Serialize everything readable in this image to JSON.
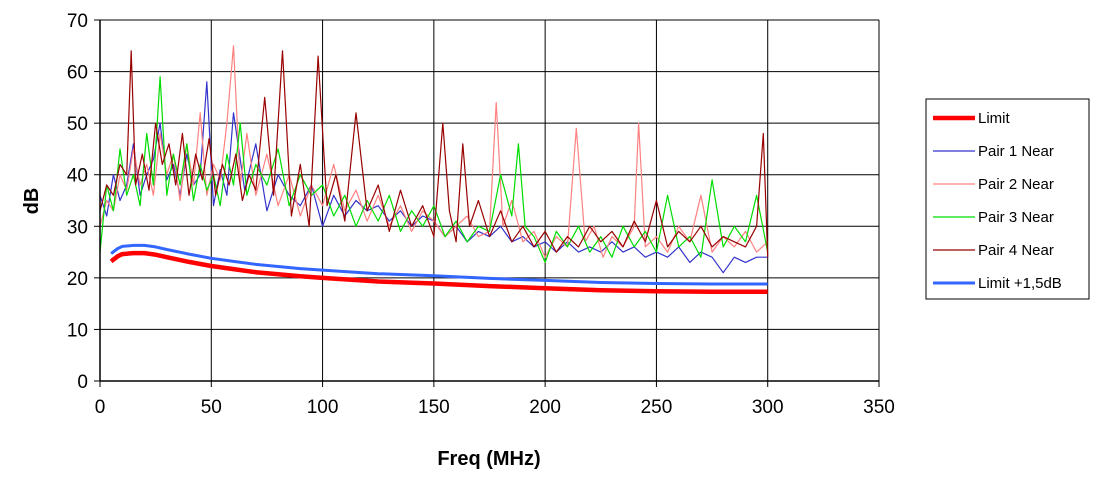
{
  "chart_data": {
    "type": "line",
    "title": "",
    "xlabel": "Freq (MHz)",
    "ylabel": "dB",
    "xlim": [
      0,
      350
    ],
    "ylim": [
      0,
      70
    ],
    "xticks": [
      0,
      50,
      100,
      150,
      200,
      250,
      300,
      350
    ],
    "yticks": [
      0,
      10,
      20,
      30,
      40,
      50,
      60,
      70
    ],
    "grid": true,
    "legend_position": "right",
    "series": [
      {
        "name": "Limit",
        "color": "#ff0000",
        "style": "thick",
        "x": [
          5,
          8,
          10,
          15,
          20,
          25,
          30,
          40,
          50,
          60,
          70,
          80,
          90,
          100,
          125,
          150,
          175,
          200,
          225,
          250,
          275,
          300
        ],
        "y": [
          23.2,
          24.2,
          24.6,
          24.8,
          24.8,
          24.5,
          24.0,
          23.1,
          22.3,
          21.7,
          21.1,
          20.7,
          20.3,
          20.0,
          19.3,
          18.9,
          18.4,
          18.0,
          17.6,
          17.4,
          17.3,
          17.3
        ]
      },
      {
        "name": "Pair 1 Near",
        "color": "#3333cc",
        "style": "thin",
        "x": [
          0,
          3,
          6,
          9,
          12,
          15,
          18,
          21,
          24,
          27,
          30,
          33,
          36,
          39,
          42,
          45,
          48,
          51,
          54,
          57,
          60,
          65,
          70,
          75,
          80,
          85,
          90,
          95,
          100,
          105,
          110,
          115,
          120,
          125,
          130,
          135,
          140,
          145,
          150,
          155,
          160,
          165,
          170,
          175,
          180,
          185,
          190,
          195,
          200,
          205,
          210,
          215,
          220,
          225,
          230,
          235,
          240,
          245,
          250,
          255,
          260,
          265,
          270,
          275,
          280,
          285,
          290,
          295,
          300
        ],
        "y": [
          36,
          32,
          40,
          35,
          38,
          46,
          36,
          40,
          43,
          50,
          39,
          42,
          36,
          44,
          38,
          40,
          58,
          34,
          41,
          36,
          52,
          37,
          46,
          33,
          40,
          36,
          34,
          38,
          30,
          36,
          32,
          35,
          33,
          34,
          31,
          33,
          30,
          32,
          31,
          28,
          30,
          27,
          29,
          28,
          30,
          27,
          28,
          26,
          27,
          25,
          27,
          25,
          26,
          25,
          27,
          25,
          26,
          24,
          25,
          24,
          26,
          23,
          25,
          24,
          21,
          24,
          23,
          24,
          24
        ]
      },
      {
        "name": "Pair 2 Near",
        "color": "#ff8080",
        "style": "thin",
        "x": [
          0,
          3,
          6,
          9,
          12,
          15,
          18,
          21,
          24,
          27,
          30,
          33,
          36,
          39,
          42,
          45,
          48,
          51,
          54,
          57,
          60,
          63,
          66,
          70,
          75,
          80,
          85,
          90,
          95,
          100,
          105,
          110,
          115,
          120,
          125,
          130,
          135,
          140,
          145,
          150,
          155,
          160,
          165,
          170,
          175,
          178,
          181,
          185,
          190,
          195,
          200,
          205,
          210,
          214,
          218,
          222,
          226,
          230,
          235,
          240,
          242,
          245,
          250,
          255,
          260,
          265,
          270,
          275,
          280,
          285,
          290,
          295,
          300
        ],
        "y": [
          30,
          35,
          33,
          40,
          37,
          45,
          38,
          42,
          36,
          48,
          40,
          44,
          35,
          46,
          38,
          52,
          36,
          42,
          39,
          50,
          65,
          38,
          48,
          36,
          44,
          34,
          40,
          32,
          38,
          34,
          42,
          33,
          37,
          31,
          36,
          30,
          34,
          29,
          33,
          31,
          28,
          30,
          32,
          28,
          29,
          54,
          30,
          35,
          27,
          29,
          24,
          28,
          26,
          49,
          27,
          30,
          24,
          28,
          26,
          30,
          50,
          26,
          28,
          25,
          30,
          27,
          36,
          25,
          28,
          26,
          29,
          25,
          27
        ]
      },
      {
        "name": "Pair 3 Near",
        "color": "#00dd00",
        "style": "thin",
        "x": [
          0,
          3,
          6,
          9,
          12,
          15,
          18,
          21,
          24,
          27,
          30,
          33,
          36,
          39,
          42,
          45,
          48,
          51,
          54,
          57,
          60,
          63,
          66,
          70,
          75,
          80,
          85,
          90,
          95,
          100,
          105,
          110,
          115,
          120,
          125,
          130,
          135,
          140,
          145,
          150,
          155,
          160,
          165,
          170,
          175,
          180,
          185,
          188,
          191,
          195,
          200,
          205,
          210,
          215,
          220,
          225,
          230,
          235,
          240,
          245,
          250,
          255,
          260,
          265,
          270,
          275,
          280,
          285,
          290,
          295,
          300
        ],
        "y": [
          25,
          38,
          33,
          45,
          36,
          40,
          34,
          48,
          38,
          59,
          36,
          44,
          38,
          46,
          35,
          42,
          37,
          40,
          34,
          44,
          38,
          50,
          36,
          42,
          38,
          45,
          34,
          40,
          36,
          38,
          32,
          36,
          30,
          35,
          31,
          36,
          29,
          33,
          30,
          34,
          28,
          31,
          27,
          30,
          29,
          40,
          32,
          46,
          30,
          28,
          23,
          29,
          26,
          30,
          25,
          28,
          24,
          30,
          26,
          29,
          25,
          36,
          26,
          28,
          24,
          39,
          26,
          30,
          27,
          36,
          25
        ]
      },
      {
        "name": "Pair 4 Near",
        "color": "#990000",
        "style": "thin",
        "x": [
          0,
          3,
          6,
          9,
          12,
          14,
          16,
          19,
          22,
          25,
          28,
          31,
          34,
          37,
          40,
          43,
          46,
          49,
          52,
          55,
          58,
          61,
          64,
          67,
          70,
          74,
          78,
          82,
          86,
          90,
          94,
          98,
          102,
          106,
          110,
          115,
          120,
          125,
          130,
          135,
          140,
          145,
          150,
          154,
          157,
          160,
          163,
          166,
          170,
          175,
          180,
          185,
          190,
          195,
          200,
          205,
          210,
          215,
          220,
          225,
          230,
          235,
          240,
          245,
          250,
          255,
          260,
          265,
          270,
          275,
          280,
          285,
          290,
          295,
          298,
          300
        ],
        "y": [
          33,
          38,
          36,
          42,
          40,
          64,
          38,
          44,
          37,
          50,
          42,
          46,
          38,
          48,
          36,
          44,
          39,
          47,
          36,
          42,
          38,
          44,
          35,
          40,
          37,
          55,
          36,
          64,
          32,
          42,
          30,
          63,
          34,
          40,
          31,
          52,
          33,
          38,
          29,
          37,
          30,
          34,
          28,
          50,
          33,
          27,
          46,
          30,
          35,
          28,
          33,
          27,
          30,
          26,
          29,
          25,
          28,
          26,
          30,
          27,
          29,
          26,
          31,
          27,
          35,
          26,
          29,
          27,
          30,
          26,
          28,
          27,
          26,
          30,
          48,
          24
        ]
      },
      {
        "name": "Limit +1,5dB",
        "color": "#3366ff",
        "style": "medium",
        "x": [
          5,
          8,
          10,
          15,
          20,
          25,
          30,
          40,
          50,
          60,
          70,
          80,
          90,
          100,
          125,
          150,
          175,
          200,
          225,
          250,
          275,
          300
        ],
        "y": [
          24.7,
          25.7,
          26.1,
          26.3,
          26.3,
          26.0,
          25.5,
          24.6,
          23.8,
          23.2,
          22.6,
          22.2,
          21.8,
          21.5,
          20.8,
          20.4,
          19.9,
          19.5,
          19.1,
          18.9,
          18.8,
          18.8
        ]
      }
    ]
  }
}
